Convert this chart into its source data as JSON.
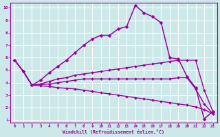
{
  "xlabel": "Windchill (Refroidissement éolien,°C)",
  "xlim": [
    -0.5,
    23.5
  ],
  "ylim": [
    0.8,
    10.4
  ],
  "xticks": [
    0,
    1,
    2,
    3,
    4,
    5,
    6,
    7,
    8,
    9,
    10,
    11,
    12,
    13,
    14,
    15,
    16,
    17,
    18,
    19,
    20,
    21,
    22,
    23
  ],
  "yticks": [
    1,
    2,
    3,
    4,
    5,
    6,
    7,
    8,
    9,
    10
  ],
  "background_color": "#cce8e8",
  "grid_color": "#ffffff",
  "line_color": "#990099",
  "lines": [
    {
      "x": [
        0,
        1,
        2,
        3,
        4,
        5,
        6,
        7,
        8,
        9,
        10,
        11,
        12,
        13,
        14,
        15,
        16,
        17,
        18,
        19,
        20,
        21,
        22,
        23
      ],
      "y": [
        5.8,
        4.9,
        3.8,
        4.2,
        4.8,
        5.3,
        5.8,
        6.4,
        7.0,
        7.5,
        7.8,
        7.8,
        8.3,
        8.5,
        10.2,
        9.6,
        9.3,
        8.8,
        6.0,
        5.9,
        4.5,
        3.6,
        1.1,
        1.7
      ],
      "marker": "D",
      "markersize": 2.5,
      "linewidth": 1.1
    },
    {
      "x": [
        0,
        1,
        2,
        3,
        4,
        5,
        6,
        7,
        8,
        9,
        10,
        11,
        12,
        13,
        14,
        15,
        16,
        17,
        18,
        19,
        20,
        21,
        22,
        23
      ],
      "y": [
        5.8,
        4.9,
        3.8,
        3.9,
        4.1,
        4.3,
        4.4,
        4.6,
        4.7,
        4.8,
        4.9,
        5.0,
        5.1,
        5.2,
        5.3,
        5.4,
        5.5,
        5.6,
        5.7,
        5.8,
        5.8,
        5.8,
        3.4,
        1.7
      ],
      "marker": "D",
      "markersize": 2,
      "linewidth": 1.0
    },
    {
      "x": [
        0,
        1,
        2,
        3,
        4,
        5,
        6,
        7,
        8,
        9,
        10,
        11,
        12,
        13,
        14,
        15,
        16,
        17,
        18,
        19,
        20,
        21,
        22,
        23
      ],
      "y": [
        5.8,
        4.9,
        3.8,
        3.85,
        3.9,
        4.0,
        4.1,
        4.2,
        4.3,
        4.3,
        4.3,
        4.3,
        4.3,
        4.3,
        4.3,
        4.3,
        4.3,
        4.3,
        4.3,
        4.4,
        4.4,
        3.5,
        2.3,
        1.5
      ],
      "marker": "D",
      "markersize": 2,
      "linewidth": 1.0
    },
    {
      "x": [
        0,
        1,
        2,
        3,
        4,
        5,
        6,
        7,
        8,
        9,
        10,
        11,
        12,
        13,
        14,
        15,
        16,
        17,
        18,
        19,
        20,
        21,
        22,
        23
      ],
      "y": [
        5.8,
        4.9,
        3.8,
        3.75,
        3.7,
        3.6,
        3.55,
        3.5,
        3.4,
        3.3,
        3.2,
        3.1,
        3.0,
        2.9,
        2.8,
        2.7,
        2.6,
        2.5,
        2.4,
        2.3,
        2.2,
        2.05,
        1.85,
        1.5
      ],
      "marker": "D",
      "markersize": 2,
      "linewidth": 1.0
    }
  ]
}
